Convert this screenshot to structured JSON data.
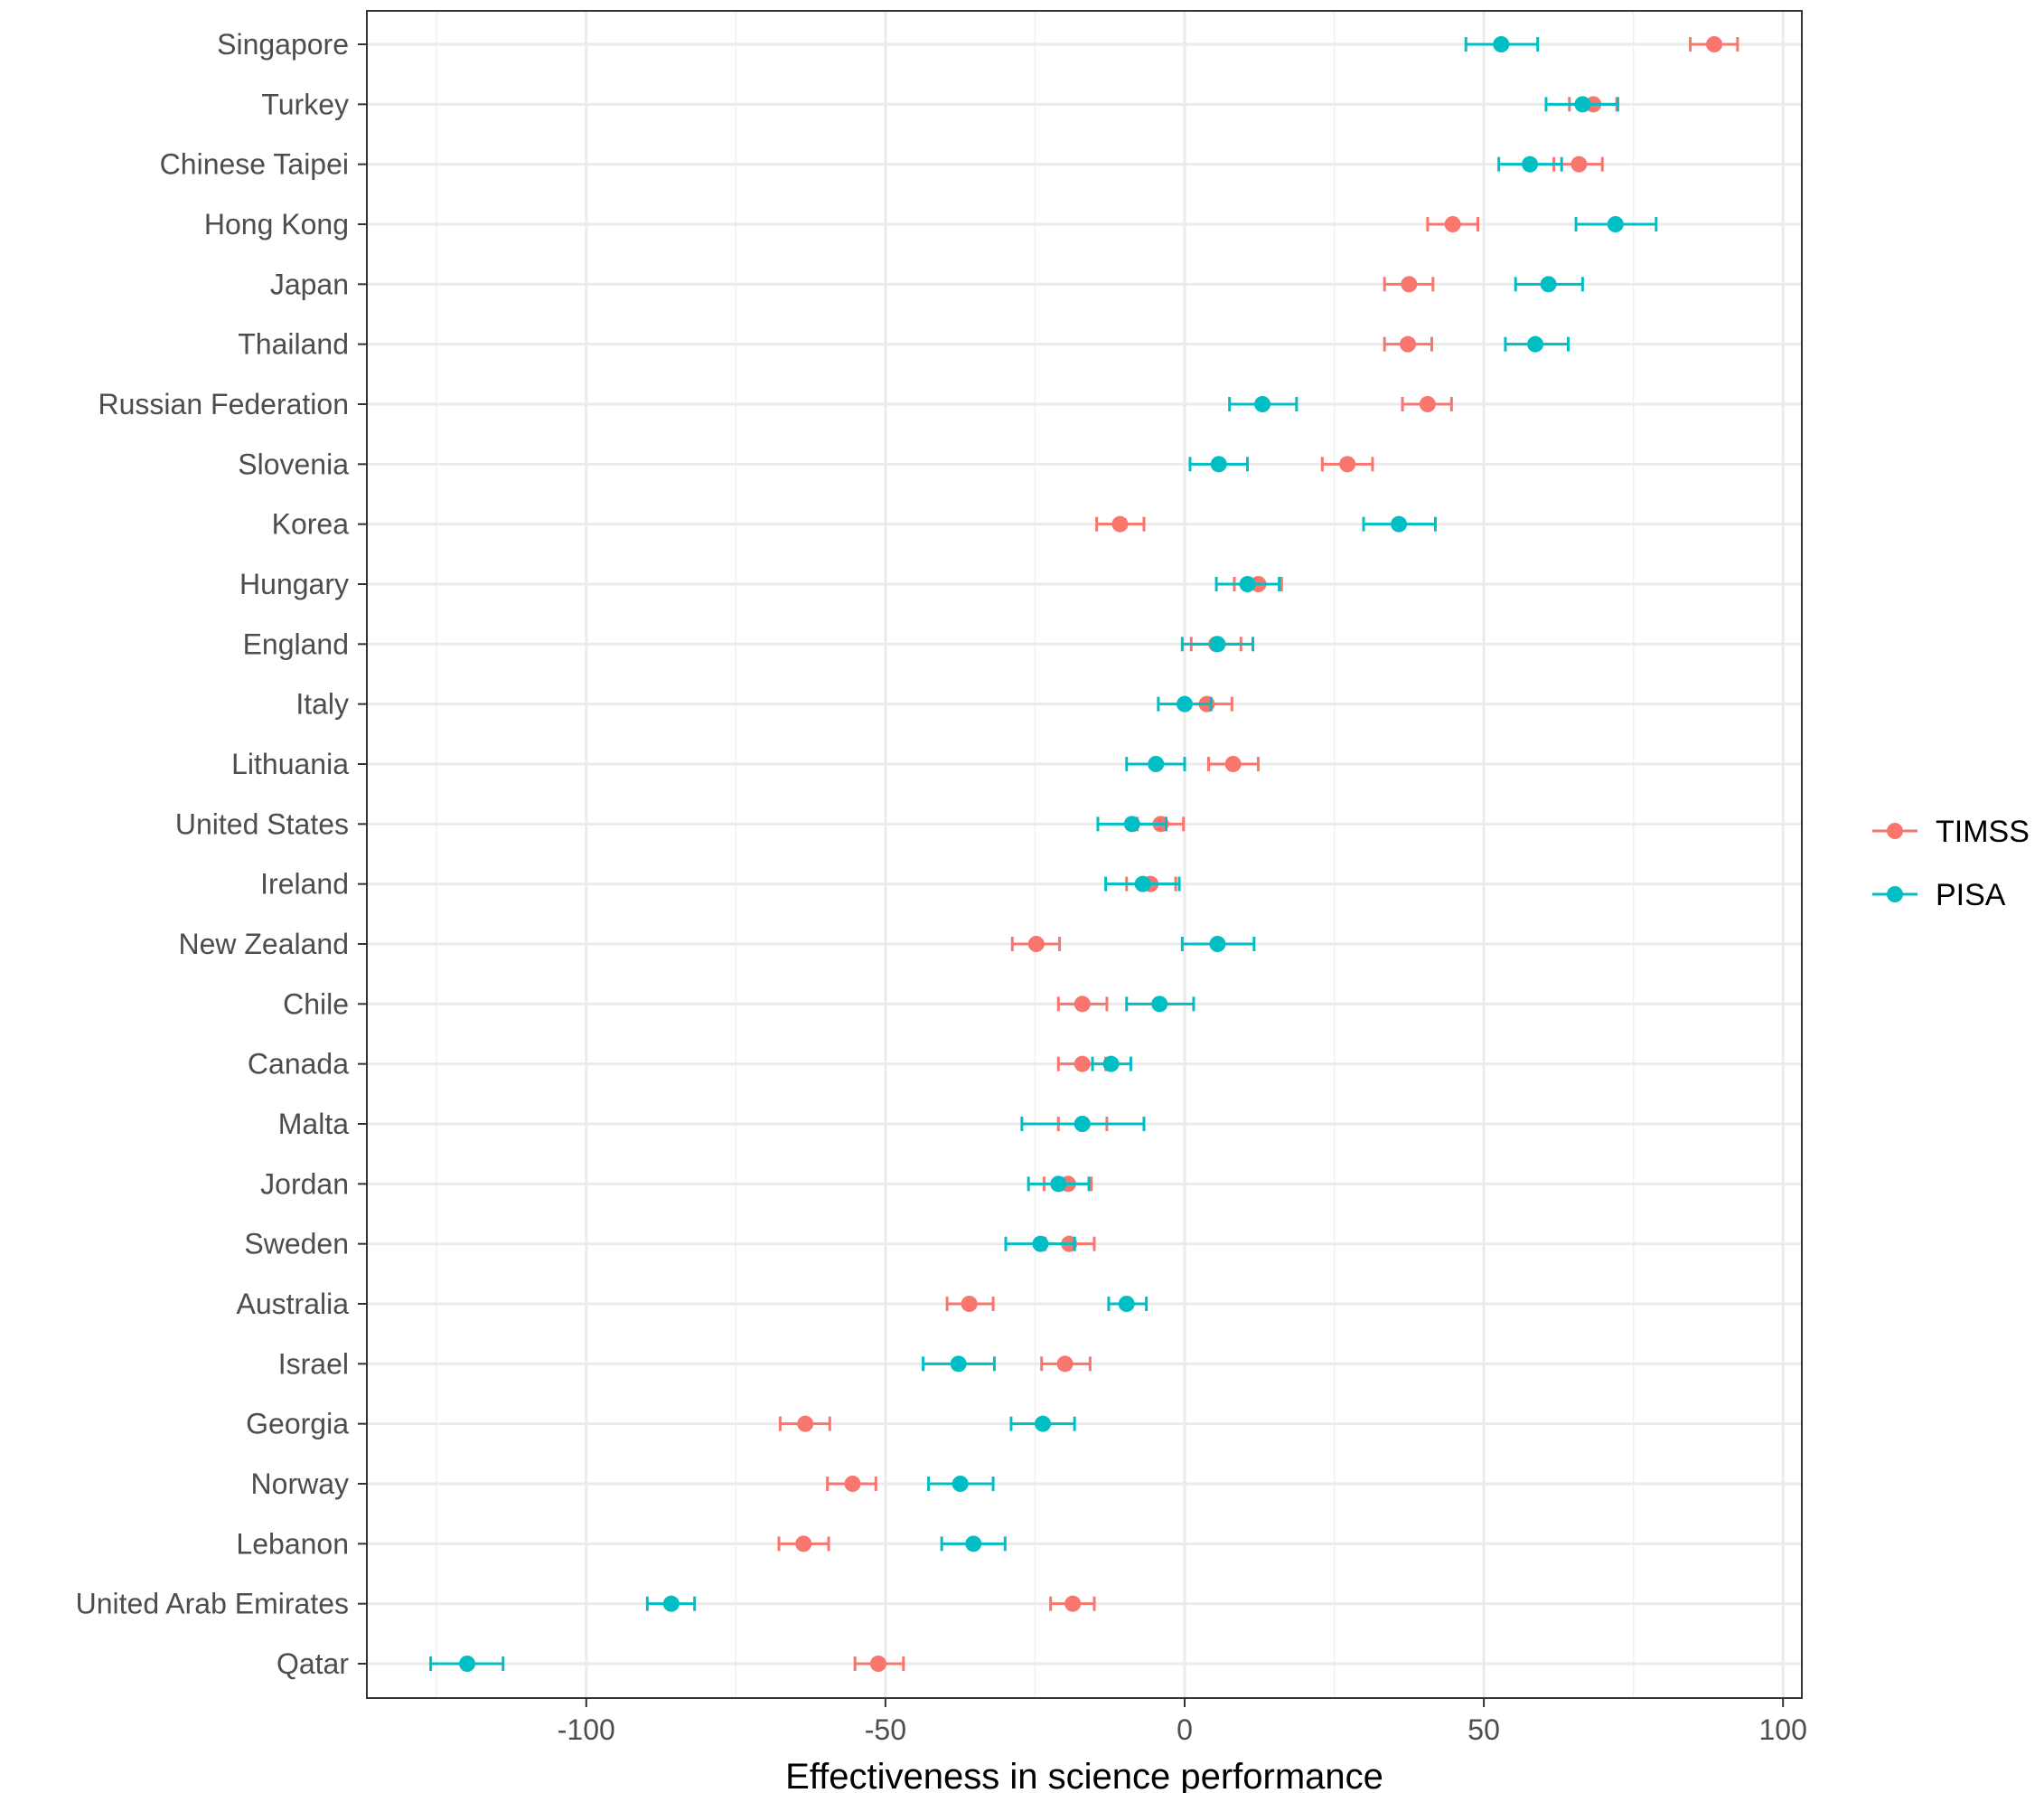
{
  "chart_data": {
    "type": "scatter",
    "subtype": "dot-with-error-bars",
    "title": "",
    "xlabel": "Effectiveness in science performance",
    "ylabel": "",
    "xlim": [
      -137,
      104
    ],
    "xticks": [
      -100,
      -50,
      0,
      50,
      100
    ],
    "grid": true,
    "legend_position": "right",
    "colors": {
      "TIMSS": "#F8766D",
      "PISA": "#00BFC4"
    },
    "categories": [
      "Singapore",
      "Turkey",
      "Chinese Taipei",
      "Hong Kong",
      "Japan",
      "Thailand",
      "Russian Federation",
      "Slovenia",
      "Korea",
      "Hungary",
      "England",
      "Italy",
      "Lithuania",
      "United States",
      "Ireland",
      "New Zealand",
      "Chile",
      "Canada",
      "Malta",
      "Jordan",
      "Sweden",
      "Australia",
      "Israel",
      "Georgia",
      "Norway",
      "Lebanon",
      "United Arab Emirates",
      "Qatar"
    ],
    "series": [
      {
        "name": "TIMSS",
        "values": [
          88.5,
          68.3,
          65.9,
          44.8,
          37.5,
          37.3,
          40.6,
          27.2,
          -10.8,
          12.3,
          5.3,
          3.7,
          8.1,
          -4.0,
          -5.7,
          -24.8,
          -17.1,
          -17.1,
          -17.1,
          -19.5,
          -19.3,
          -36.0,
          -20.0,
          -63.4,
          -55.5,
          -63.7,
          -18.7,
          -51.2
        ],
        "lower": [
          84.5,
          64.3,
          61.7,
          40.6,
          33.4,
          33.4,
          36.4,
          23.0,
          -14.7,
          8.3,
          1.1,
          -0.4,
          4.0,
          -7.9,
          -9.7,
          -28.8,
          -21.1,
          -21.1,
          -21.1,
          -23.5,
          -23.3,
          -39.7,
          -23.9,
          -67.6,
          -59.7,
          -67.8,
          -22.4,
          -55.1
        ],
        "upper": [
          92.4,
          72.2,
          69.8,
          49.0,
          41.5,
          41.3,
          44.6,
          31.4,
          -6.8,
          16.2,
          9.4,
          7.9,
          12.3,
          -0.2,
          -1.5,
          -20.9,
          -13.0,
          -13.2,
          -13.0,
          -15.6,
          -15.1,
          -32.0,
          -15.8,
          -59.3,
          -51.6,
          -59.5,
          -15.1,
          -47.0
        ]
      },
      {
        "name": "PISA",
        "values": [
          52.9,
          66.5,
          57.7,
          72.0,
          60.8,
          58.6,
          13.0,
          5.7,
          35.8,
          10.5,
          5.5,
          0.0,
          -4.8,
          -8.8,
          -7.0,
          5.5,
          -4.2,
          -12.3,
          -17.1,
          -21.1,
          -24.1,
          -9.7,
          -37.8,
          -23.7,
          -37.5,
          -35.3,
          -85.8,
          -119.9
        ],
        "lower": [
          47.0,
          60.4,
          52.5,
          65.4,
          55.3,
          53.6,
          7.5,
          0.9,
          29.9,
          5.3,
          -0.4,
          -4.4,
          -9.7,
          -14.5,
          -13.2,
          -0.4,
          -9.7,
          -15.4,
          -27.2,
          -26.1,
          -29.9,
          -12.7,
          -43.7,
          -29.0,
          -42.8,
          -40.6,
          -89.8,
          -126.0
        ],
        "upper": [
          59.0,
          72.4,
          63.0,
          78.8,
          66.5,
          64.1,
          18.7,
          10.5,
          41.9,
          15.8,
          11.4,
          4.4,
          0.0,
          -3.1,
          -0.9,
          11.6,
          1.5,
          -9.0,
          -6.8,
          -16.0,
          -18.4,
          -6.4,
          -31.8,
          -18.4,
          -32.0,
          -30.0,
          -81.9,
          -113.9
        ]
      }
    ]
  }
}
